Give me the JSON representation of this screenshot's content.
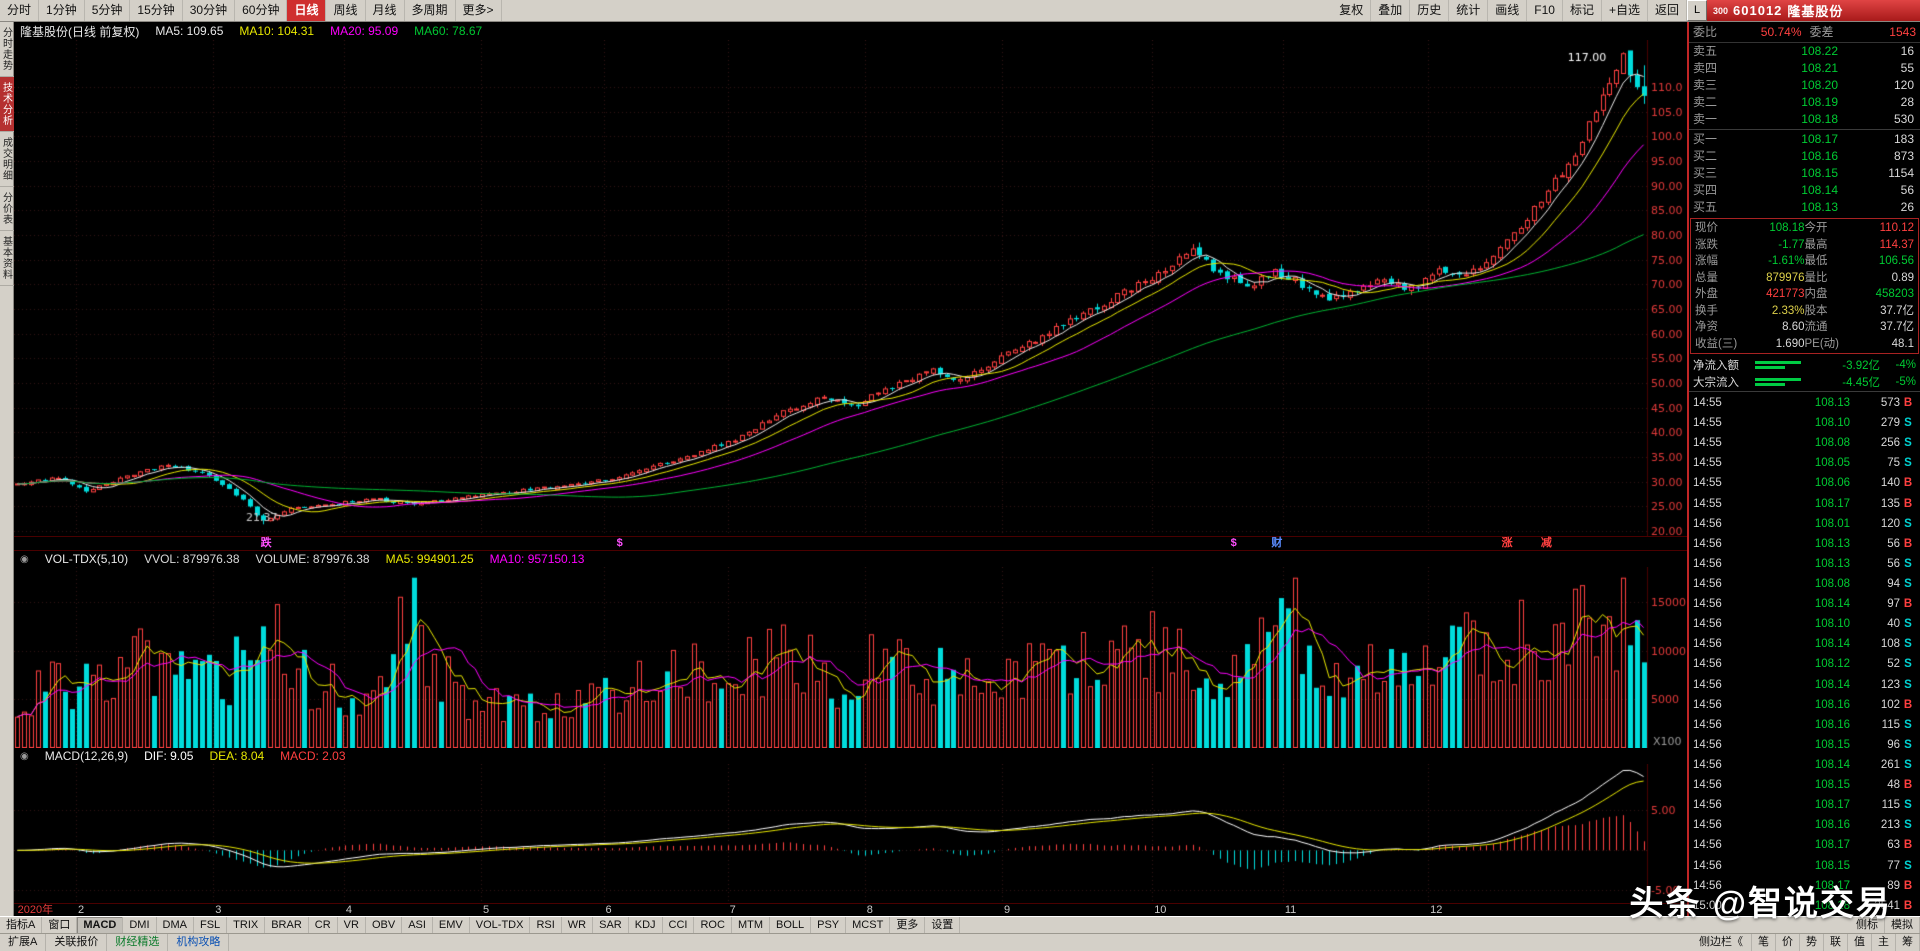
{
  "icons": {
    "collapse": "◉"
  },
  "toolbar": {
    "periods": [
      {
        "label": "分时"
      },
      {
        "label": "1分钟"
      },
      {
        "label": "5分钟"
      },
      {
        "label": "15分钟"
      },
      {
        "label": "30分钟"
      },
      {
        "label": "60分钟"
      },
      {
        "label": "日线",
        "active": true
      },
      {
        "label": "周线"
      },
      {
        "label": "月线"
      },
      {
        "label": "多周期"
      },
      {
        "label": "更多>"
      }
    ],
    "tools": [
      "复权",
      "叠加",
      "历史",
      "统计",
      "画线",
      "F10",
      "标记",
      "+自选",
      "返回"
    ],
    "stock": {
      "left_btn": "L",
      "board": "300",
      "code": "601012",
      "name": "隆基股份"
    }
  },
  "left_tabs": [
    {
      "label": "分时走势"
    },
    {
      "label": "技术分析",
      "active": true
    },
    {
      "label": "成交明细"
    },
    {
      "label": "分价表"
    },
    {
      "label": "基本资料"
    }
  ],
  "chart_header": {
    "title": "隆基股份(日线 前复权)",
    "ma_labels": [
      {
        "text": "MA5: 109.65",
        "color": "#e8e8e8"
      },
      {
        "text": "MA10: 104.31",
        "color": "#e8e800"
      },
      {
        "text": "MA20: 95.09",
        "color": "#ff00ff"
      },
      {
        "text": "MA60: 78.67",
        "color": "#00c832"
      }
    ]
  },
  "vol_header": {
    "title": "VOL-TDX(5,10)",
    "items": [
      {
        "text": "VVOL: 879976.38",
        "color": "#d8d8d8"
      },
      {
        "text": "VOLUME: 879976.38",
        "color": "#d8d8d8"
      },
      {
        "text": "MA5: 994901.25",
        "color": "#e8e800"
      },
      {
        "text": "MA10: 957150.13",
        "color": "#ff00ff"
      }
    ]
  },
  "macd_header": {
    "title": "MACD(12,26,9)",
    "items": [
      {
        "text": "DIF: 9.05",
        "color": "#ffffff"
      },
      {
        "text": "DEA: 8.04",
        "color": "#e8e800"
      },
      {
        "text": "MACD: 2.03",
        "color": "#ff4040"
      }
    ]
  },
  "markers": [
    {
      "text": "跌",
      "color": "#ff50ff",
      "f": 0.151
    },
    {
      "text": "$",
      "color": "#ff50ff",
      "f": 0.369
    },
    {
      "text": "$",
      "color": "#ff50ff",
      "f": 0.745
    },
    {
      "text": "财",
      "color": "#5a8cff",
      "f": 0.77
    },
    {
      "text": "涨",
      "color": "#ff4040",
      "f": 0.911
    },
    {
      "text": "减",
      "color": "#ff4040",
      "f": 0.935
    }
  ],
  "chart_data": {
    "type": "candlestick",
    "symbol": "601012",
    "name": "隆基股份",
    "period": "日线 前复权",
    "n_days": 239,
    "ylim": [
      19,
      119.5
    ],
    "y_ticks": [
      20,
      25,
      30,
      35,
      40,
      45,
      50,
      55,
      60,
      65,
      70,
      75,
      80,
      85,
      90,
      95,
      100,
      105,
      110
    ],
    "price_anchors": [
      [
        0,
        29.5
      ],
      [
        6,
        31
      ],
      [
        10,
        28
      ],
      [
        16,
        31
      ],
      [
        22,
        33.5
      ],
      [
        28,
        31.5
      ],
      [
        32,
        27.5
      ],
      [
        36,
        22
      ],
      [
        40,
        24.5
      ],
      [
        46,
        25.5
      ],
      [
        52,
        26.5
      ],
      [
        58,
        25.5
      ],
      [
        64,
        26.5
      ],
      [
        70,
        27.5
      ],
      [
        76,
        28.5
      ],
      [
        82,
        29.5
      ],
      [
        88,
        31
      ],
      [
        94,
        33.5
      ],
      [
        100,
        36
      ],
      [
        106,
        39
      ],
      [
        112,
        44
      ],
      [
        118,
        47.5
      ],
      [
        122,
        45
      ],
      [
        128,
        49.5
      ],
      [
        134,
        52.5
      ],
      [
        138,
        50.5
      ],
      [
        144,
        55
      ],
      [
        150,
        59.5
      ],
      [
        156,
        64
      ],
      [
        162,
        68.5
      ],
      [
        168,
        73
      ],
      [
        172,
        76.5
      ],
      [
        176,
        72
      ],
      [
        180,
        69.5
      ],
      [
        184,
        72.5
      ],
      [
        188,
        70
      ],
      [
        192,
        66.5
      ],
      [
        196,
        68.5
      ],
      [
        200,
        71.5
      ],
      [
        204,
        69
      ],
      [
        208,
        73
      ],
      [
        212,
        71.5
      ],
      [
        216,
        76
      ],
      [
        220,
        82
      ],
      [
        224,
        89
      ],
      [
        228,
        97
      ],
      [
        231,
        105
      ],
      [
        233,
        111
      ],
      [
        235,
        116
      ],
      [
        236,
        112.3
      ],
      [
        237,
        109.95
      ],
      [
        238,
        108.18
      ]
    ],
    "vol_anchors": [
      [
        0,
        5500
      ],
      [
        6,
        7000
      ],
      [
        12,
        6000
      ],
      [
        18,
        8500
      ],
      [
        24,
        7000
      ],
      [
        30,
        6500
      ],
      [
        36,
        12000
      ],
      [
        42,
        7000
      ],
      [
        48,
        5500
      ],
      [
        54,
        6500
      ],
      [
        58,
        17500
      ],
      [
        60,
        8000
      ],
      [
        66,
        5000
      ],
      [
        72,
        4500
      ],
      [
        78,
        5000
      ],
      [
        84,
        5500
      ],
      [
        90,
        7000
      ],
      [
        96,
        7500
      ],
      [
        102,
        8000
      ],
      [
        108,
        9500
      ],
      [
        114,
        8500
      ],
      [
        120,
        7500
      ],
      [
        126,
        9000
      ],
      [
        132,
        8000
      ],
      [
        138,
        7000
      ],
      [
        144,
        8500
      ],
      [
        150,
        8000
      ],
      [
        156,
        9000
      ],
      [
        162,
        9500
      ],
      [
        168,
        10500
      ],
      [
        174,
        9000
      ],
      [
        180,
        8000
      ],
      [
        186,
        13500
      ],
      [
        192,
        8500
      ],
      [
        198,
        7500
      ],
      [
        204,
        8000
      ],
      [
        210,
        9500
      ],
      [
        216,
        10500
      ],
      [
        222,
        11000
      ],
      [
        228,
        12000
      ],
      [
        232,
        13500
      ],
      [
        235,
        12500
      ],
      [
        238,
        8800
      ]
    ],
    "last_candle": {
      "open": 110.12,
      "high": 114.37,
      "low": 106.56,
      "close": 108.18
    },
    "high_marker": {
      "day": 235,
      "price": 117.0,
      "label": "117.00"
    },
    "low_marker": {
      "day": 36,
      "price": 21.37,
      "label": "21.37"
    },
    "vol_ticks": [
      5000,
      10000,
      15000
    ],
    "vol_unit": "X100",
    "macd_ticks": [
      5.0,
      -5.0
    ],
    "ma_periods": [
      5,
      10,
      20,
      60
    ],
    "x_axis": [
      {
        "label": "2020年",
        "f": 0.001,
        "red": true
      },
      {
        "label": "2",
        "f": 0.038
      },
      {
        "label": "3",
        "f": 0.122
      },
      {
        "label": "4",
        "f": 0.202
      },
      {
        "label": "5",
        "f": 0.286
      },
      {
        "label": "6",
        "f": 0.361
      },
      {
        "label": "7",
        "f": 0.437
      },
      {
        "label": "8",
        "f": 0.521
      },
      {
        "label": "9",
        "f": 0.605
      },
      {
        "label": "10",
        "f": 0.697
      },
      {
        "label": "11",
        "f": 0.777
      },
      {
        "label": "12",
        "f": 0.866
      }
    ],
    "colors": {
      "up": "#ff4040",
      "down": "#00dcdc",
      "ma5": "#e8e8e8",
      "ma10": "#e8e800",
      "ma20": "#ff00ff",
      "ma60": "#00b432",
      "axis": "#e23a3a",
      "grid": "#351515"
    }
  },
  "right_panel": {
    "wb_row": {
      "wb_label": "委比",
      "wb_value": "50.74%",
      "wc_label": "委差",
      "wc_value": "1543"
    },
    "asks": [
      {
        "label": "卖五",
        "price": "108.22",
        "vol": "16"
      },
      {
        "label": "卖四",
        "price": "108.21",
        "vol": "55"
      },
      {
        "label": "卖三",
        "price": "108.20",
        "vol": "120"
      },
      {
        "label": "卖二",
        "price": "108.19",
        "vol": "28"
      },
      {
        "label": "卖一",
        "price": "108.18",
        "vol": "530"
      }
    ],
    "bids": [
      {
        "label": "买一",
        "price": "108.17",
        "vol": "183"
      },
      {
        "label": "买二",
        "price": "108.16",
        "vol": "873"
      },
      {
        "label": "买三",
        "price": "108.15",
        "vol": "1154"
      },
      {
        "label": "买四",
        "price": "108.14",
        "vol": "56"
      },
      {
        "label": "买五",
        "price": "108.13",
        "vol": "26"
      }
    ],
    "stats": [
      {
        "l1": "现价",
        "v1": "108.18",
        "c1": "g",
        "l2": "今开",
        "v2": "110.12",
        "c2": "r"
      },
      {
        "l1": "涨跌",
        "v1": "-1.77",
        "c1": "g",
        "l2": "最高",
        "v2": "114.37",
        "c2": "r"
      },
      {
        "l1": "涨幅",
        "v1": "-1.61%",
        "c1": "g",
        "l2": "最低",
        "v2": "106.56",
        "c2": "g"
      },
      {
        "l1": "总量",
        "v1": "879976",
        "c1": "y",
        "l2": "量比",
        "v2": "0.89",
        "c2": "w"
      },
      {
        "l1": "外盘",
        "v1": "421773",
        "c1": "r",
        "l2": "内盘",
        "v2": "458203",
        "c2": "g"
      },
      {
        "l1": "换手",
        "v1": "2.33%",
        "c1": "y",
        "l2": "股本",
        "v2": "37.7亿",
        "c2": "w"
      },
      {
        "l1": "净资",
        "v1": "8.60",
        "c1": "w",
        "l2": "流通",
        "v2": "37.7亿",
        "c2": "w"
      },
      {
        "l1": "收益(三)",
        "v1": "1.690",
        "c1": "w",
        "l2": "PE(动)",
        "v2": "48.1",
        "c2": "w"
      }
    ],
    "flows": [
      {
        "label": "净流入额",
        "value": "-3.92亿",
        "pct": "-4%"
      },
      {
        "label": "大宗流入",
        "value": "-4.45亿",
        "pct": "-5%"
      }
    ],
    "ticks": [
      {
        "t": "14:55",
        "p": "108.13",
        "v": "573",
        "s": "B"
      },
      {
        "t": "14:55",
        "p": "108.10",
        "v": "279",
        "s": "S"
      },
      {
        "t": "14:55",
        "p": "108.08",
        "v": "256",
        "s": "S"
      },
      {
        "t": "14:55",
        "p": "108.05",
        "v": "75",
        "s": "S"
      },
      {
        "t": "14:55",
        "p": "108.06",
        "v": "140",
        "s": "B"
      },
      {
        "t": "14:55",
        "p": "108.17",
        "v": "135",
        "s": "B"
      },
      {
        "t": "14:56",
        "p": "108.01",
        "v": "120",
        "s": "S"
      },
      {
        "t": "14:56",
        "p": "108.13",
        "v": "56",
        "s": "B"
      },
      {
        "t": "14:56",
        "p": "108.13",
        "v": "56",
        "s": "S"
      },
      {
        "t": "14:56",
        "p": "108.08",
        "v": "94",
        "s": "S"
      },
      {
        "t": "14:56",
        "p": "108.14",
        "v": "97",
        "s": "B"
      },
      {
        "t": "14:56",
        "p": "108.10",
        "v": "40",
        "s": "S"
      },
      {
        "t": "14:56",
        "p": "108.14",
        "v": "108",
        "s": "S"
      },
      {
        "t": "14:56",
        "p": "108.12",
        "v": "52",
        "s": "S"
      },
      {
        "t": "14:56",
        "p": "108.14",
        "v": "123",
        "s": "S"
      },
      {
        "t": "14:56",
        "p": "108.16",
        "v": "102",
        "s": "B"
      },
      {
        "t": "14:56",
        "p": "108.16",
        "v": "115",
        "s": "S"
      },
      {
        "t": "14:56",
        "p": "108.15",
        "v": "96",
        "s": "S"
      },
      {
        "t": "14:56",
        "p": "108.14",
        "v": "261",
        "s": "S"
      },
      {
        "t": "14:56",
        "p": "108.15",
        "v": "48",
        "s": "B"
      },
      {
        "t": "14:56",
        "p": "108.17",
        "v": "115",
        "s": "S"
      },
      {
        "t": "14:56",
        "p": "108.16",
        "v": "213",
        "s": "S"
      },
      {
        "t": "14:56",
        "p": "108.17",
        "v": "63",
        "s": "B"
      },
      {
        "t": "14:56",
        "p": "108.15",
        "v": "77",
        "s": "S"
      },
      {
        "t": "14:56",
        "p": "108.17",
        "v": "89",
        "s": "B"
      },
      {
        "t": "15:00",
        "p": "108.18",
        "v": "3541",
        "s": "B"
      }
    ]
  },
  "bottom_tabs": {
    "left": [
      "指标A",
      "窗口",
      "MACD",
      "DMI",
      "DMA",
      "FSL",
      "TRIX",
      "BRAR",
      "CR",
      "VR",
      "OBV",
      "ASI",
      "EMV",
      "VOL-TDX",
      "RSI",
      "WR",
      "SAR",
      "KDJ",
      "CCI",
      "ROC",
      "MTM",
      "BOLL",
      "PSY",
      "MCST",
      "更多",
      "设置"
    ],
    "active": "MACD",
    "right": [
      "侧标",
      "模拟"
    ]
  },
  "status_bar": {
    "left": [
      {
        "label": "扩展A"
      },
      {
        "label": "关联报价"
      },
      {
        "label": "财经精选",
        "color": "#0a7a2a"
      },
      {
        "label": "机构攻略",
        "color": "#0a50b4"
      }
    ],
    "right_label": "侧边栏《",
    "right_tabs": [
      "笔",
      "价",
      "势",
      "联",
      "值",
      "主",
      "筹"
    ]
  },
  "watermark": "头条 @智说交易"
}
